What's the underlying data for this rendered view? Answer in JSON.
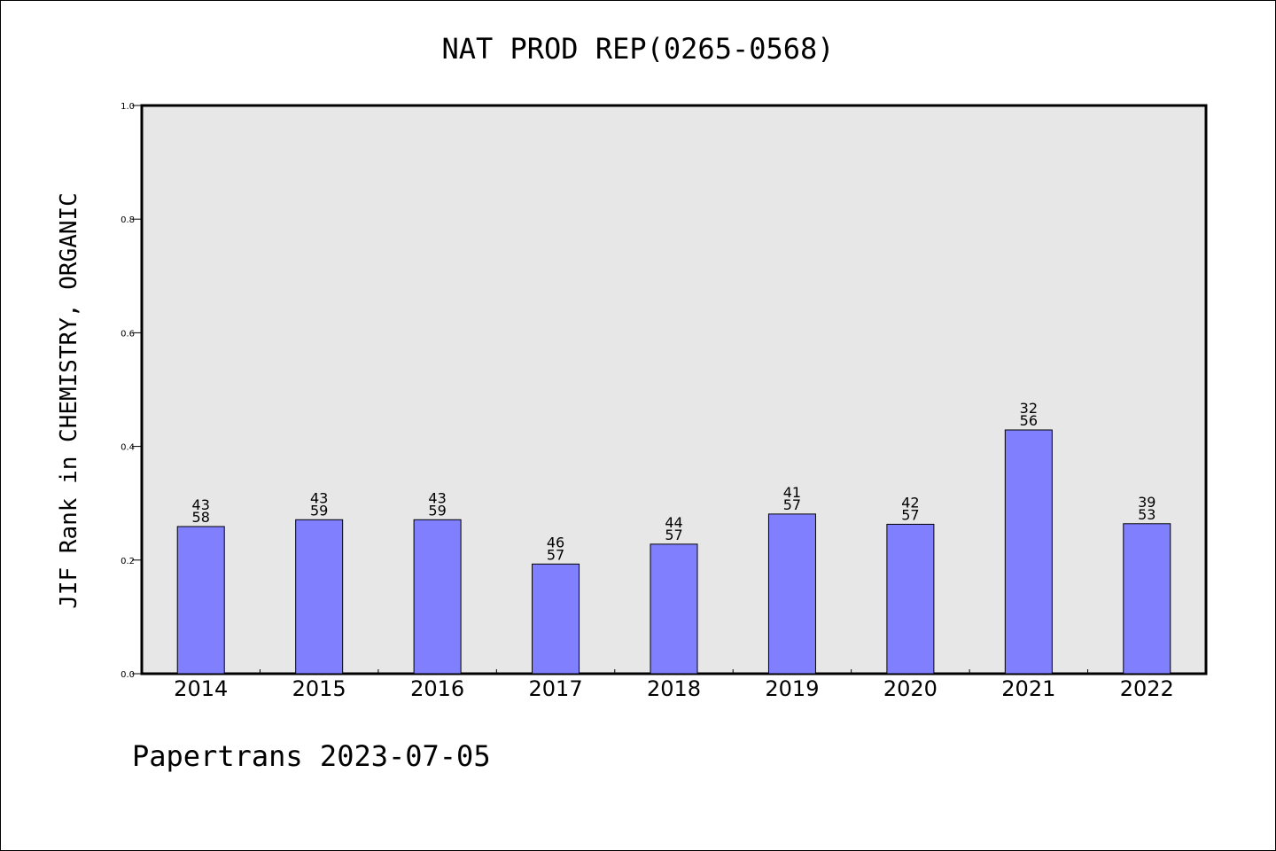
{
  "chart_data": {
    "type": "bar",
    "title": "NAT PROD REP(0265-0568)",
    "ylabel": "JIF Rank in CHEMISTRY, ORGANIC",
    "xlabel": "",
    "ylim": [
      0,
      1.0
    ],
    "yticks": [
      "0.0",
      "0.2",
      "0.4",
      "0.6",
      "0.8",
      "1.0"
    ],
    "grid": false,
    "categories": [
      "2014",
      "2015",
      "2016",
      "2017",
      "2018",
      "2019",
      "2020",
      "2021",
      "2022"
    ],
    "values": [
      0.259,
      0.271,
      0.271,
      0.193,
      0.228,
      0.281,
      0.263,
      0.429,
      0.264
    ],
    "rank_labels": [
      [
        "43",
        "58"
      ],
      [
        "43",
        "59"
      ],
      [
        "43",
        "59"
      ],
      [
        "46",
        "57"
      ],
      [
        "44",
        "57"
      ],
      [
        "41",
        "57"
      ],
      [
        "42",
        "57"
      ],
      [
        "32",
        "56"
      ],
      [
        "39",
        "53"
      ]
    ],
    "colors": {
      "bar": "#8080ff",
      "plot_background": "#e7e7e7",
      "axis": "#000000"
    }
  },
  "footer": "Papertrans 2023-07-05"
}
